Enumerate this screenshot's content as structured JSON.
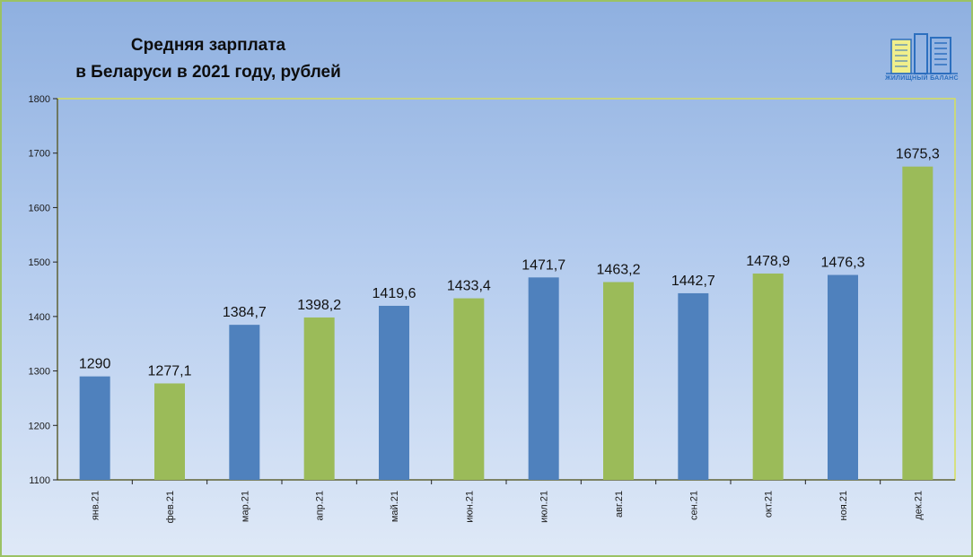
{
  "chart_data": {
    "type": "bar",
    "title_lines": [
      "Средняя зарплата",
      "в Беларуси в 2021 году, рублей"
    ],
    "categories": [
      "янв.21",
      "фев.21",
      "мар.21",
      "апр.21",
      "май.21",
      "июн.21",
      "июл.21",
      "авг.21",
      "сен.21",
      "окт.21",
      "ноя.21",
      "дек.21"
    ],
    "values": [
      1290,
      1277.1,
      1384.7,
      1398.2,
      1419.6,
      1433.4,
      1471.7,
      1463.2,
      1442.7,
      1478.9,
      1476.3,
      1675.3
    ],
    "value_labels": [
      "1290",
      "1277,1",
      "1384,7",
      "1398,2",
      "1419,6",
      "1433,4",
      "1471,7",
      "1463,2",
      "1442,7",
      "1478,9",
      "1476,3",
      "1675,3"
    ],
    "bar_colors": [
      "#4f81bd",
      "#9bbb59",
      "#4f81bd",
      "#9bbb59",
      "#4f81bd",
      "#9bbb59",
      "#4f81bd",
      "#9bbb59",
      "#4f81bd",
      "#9bbb59",
      "#4f81bd",
      "#9bbb59"
    ],
    "ylim": [
      1100,
      1800
    ],
    "yticks": [
      1100,
      1200,
      1300,
      1400,
      1500,
      1600,
      1700,
      1800
    ],
    "grid": false,
    "xlabel": "",
    "ylabel": ""
  },
  "logo": {
    "text": "ЖИЛИЩНЫЙ БАЛАНС",
    "colors": {
      "yellow": "#f0ef8c",
      "blue": "#2c6fbf"
    }
  }
}
